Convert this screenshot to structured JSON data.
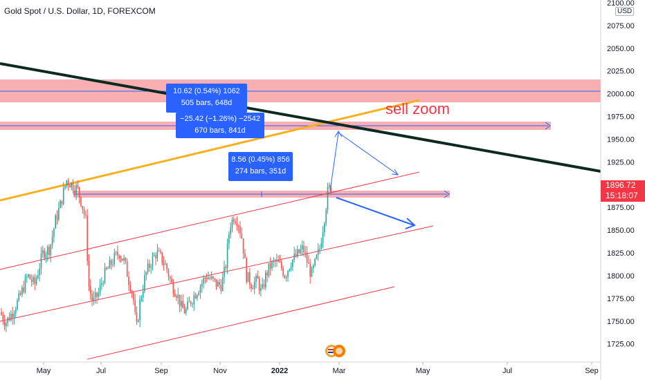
{
  "header": {
    "title": "Gold Spot / U.S. Dollar, 1D, FOREXCOM"
  },
  "axis": {
    "currency": "USD"
  },
  "price_badge": {
    "price": "1896.72",
    "countdown": "15:18:07"
  },
  "annotations": {
    "sell_text": "sell zoom",
    "measure_1": {
      "line1": "10.62 (0.54%) 1062",
      "line2": "505 bars, 648d"
    },
    "measure_2": {
      "line1": "−25.42 (−1.26%) −2542",
      "line2": "670 bars, 841d"
    },
    "measure_3": {
      "line1": "8.56 (0.45%) 856",
      "line2": "274 bars, 351d"
    }
  },
  "colors": {
    "up": "#26a69a",
    "down": "#ef5350",
    "zone": "#f7a1a3",
    "channel": "#f23645",
    "arrow": "#2962ff",
    "trend_black": "#0c2a22",
    "trend_orange": "#f9b020"
  },
  "chart_data": {
    "type": "candlestick",
    "title": "Gold Spot / U.S. Dollar, 1D, FOREXCOM",
    "y_ticks": [
      "1725.00",
      "1750.00",
      "1775.00",
      "1800.00",
      "1825.00",
      "1850.00",
      "1875.00",
      "1900.00",
      "1925.00",
      "1950.00",
      "1975.00",
      "2000.00",
      "2025.00",
      "2050.00",
      "2075.00",
      "2100.00"
    ],
    "x_ticks": [
      "May",
      "Jul",
      "Sep",
      "Nov",
      "2022",
      "Mar",
      "May",
      "Jul",
      "Sep"
    ],
    "ylim": [
      1705,
      2103
    ],
    "last_price": 1896.72,
    "close_path": [
      [
        0,
        1760
      ],
      [
        8,
        1748
      ],
      [
        18,
        1760
      ],
      [
        28,
        1775
      ],
      [
        40,
        1800
      ],
      [
        50,
        1790
      ],
      [
        62,
        1825
      ],
      [
        72,
        1830
      ],
      [
        80,
        1860
      ],
      [
        88,
        1880
      ],
      [
        96,
        1905
      ],
      [
        104,
        1900
      ],
      [
        112,
        1895
      ],
      [
        118,
        1880
      ],
      [
        124,
        1860
      ],
      [
        128,
        1790
      ],
      [
        134,
        1770
      ],
      [
        142,
        1780
      ],
      [
        150,
        1800
      ],
      [
        158,
        1810
      ],
      [
        166,
        1820
      ],
      [
        172,
        1825
      ],
      [
        180,
        1815
      ],
      [
        186,
        1795
      ],
      [
        192,
        1780
      ],
      [
        197,
        1740
      ],
      [
        202,
        1770
      ],
      [
        210,
        1800
      ],
      [
        218,
        1815
      ],
      [
        226,
        1825
      ],
      [
        232,
        1820
      ],
      [
        240,
        1810
      ],
      [
        248,
        1790
      ],
      [
        256,
        1780
      ],
      [
        262,
        1765
      ],
      [
        268,
        1760
      ],
      [
        274,
        1770
      ],
      [
        282,
        1780
      ],
      [
        290,
        1790
      ],
      [
        298,
        1800
      ],
      [
        306,
        1795
      ],
      [
        314,
        1790
      ],
      [
        320,
        1790
      ],
      [
        326,
        1810
      ],
      [
        332,
        1855
      ],
      [
        338,
        1865
      ],
      [
        344,
        1860
      ],
      [
        350,
        1840
      ],
      [
        356,
        1800
      ],
      [
        364,
        1790
      ],
      [
        372,
        1795
      ],
      [
        378,
        1780
      ],
      [
        384,
        1800
      ],
      [
        390,
        1810
      ],
      [
        398,
        1815
      ],
      [
        406,
        1810
      ],
      [
        412,
        1800
      ],
      [
        420,
        1815
      ],
      [
        426,
        1820
      ],
      [
        432,
        1825
      ],
      [
        438,
        1830
      ],
      [
        444,
        1815
      ],
      [
        450,
        1800
      ],
      [
        456,
        1815
      ],
      [
        462,
        1830
      ],
      [
        466,
        1850
      ],
      [
        470,
        1870
      ],
      [
        474,
        1895
      ],
      [
        479,
        1897
      ]
    ]
  }
}
